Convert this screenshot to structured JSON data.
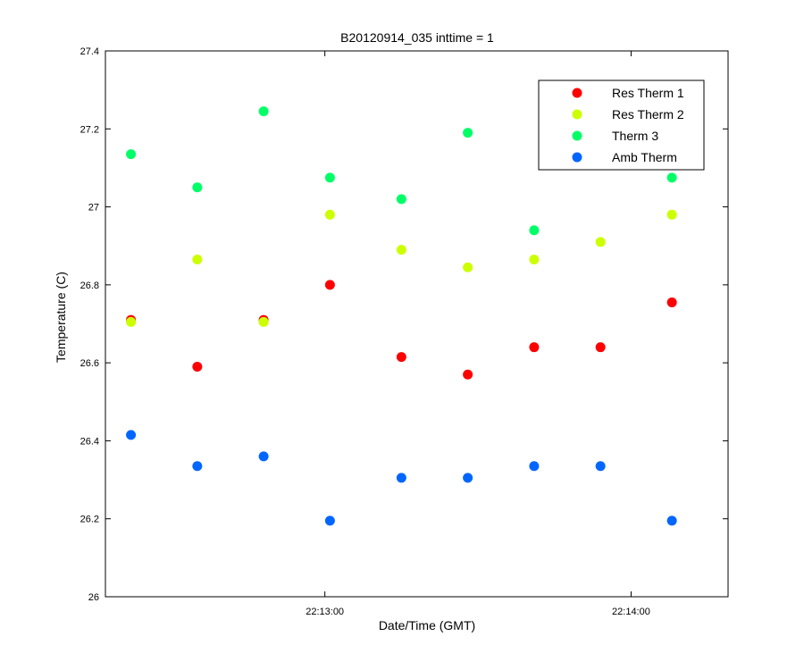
{
  "chart_data": {
    "type": "scatter",
    "title": "B20120914_035 inttime = 1",
    "xlabel": "Date/Time (GMT)",
    "ylabel": "Temperature (C)",
    "ylim": [
      26,
      27.4
    ],
    "yticks": [
      "26",
      "26.2",
      "26.4",
      "26.6",
      "26.8",
      "27",
      "27.2",
      "27.4"
    ],
    "xlim": [
      "22:12:17",
      "22:14:19"
    ],
    "xticks": [
      "22:13:00",
      "22:14:00"
    ],
    "x": [
      "22:12:22",
      "22:12:35",
      "22:12:48",
      "22:13:01",
      "22:13:15",
      "22:13:28",
      "22:13:41",
      "22:13:54",
      "22:14:08"
    ],
    "grid": false,
    "legend_position": "top-right",
    "series": [
      {
        "name": "Res Therm 1",
        "color": "#ff0000",
        "values": [
          26.71,
          26.59,
          26.71,
          26.8,
          26.615,
          26.57,
          26.64,
          26.64,
          26.755
        ]
      },
      {
        "name": "Res Therm 2",
        "color": "#ccff00",
        "values": [
          26.705,
          26.865,
          26.705,
          26.98,
          26.89,
          26.845,
          26.865,
          26.91,
          26.98
        ]
      },
      {
        "name": "Therm 3",
        "color": "#00ff66",
        "values": [
          27.135,
          27.05,
          27.245,
          27.075,
          27.02,
          27.19,
          26.94,
          null,
          27.075
        ]
      },
      {
        "name": "Amb Therm",
        "color": "#0066ff",
        "values": [
          26.415,
          26.335,
          26.36,
          26.195,
          26.305,
          26.305,
          26.335,
          26.335,
          26.195
        ]
      }
    ]
  }
}
